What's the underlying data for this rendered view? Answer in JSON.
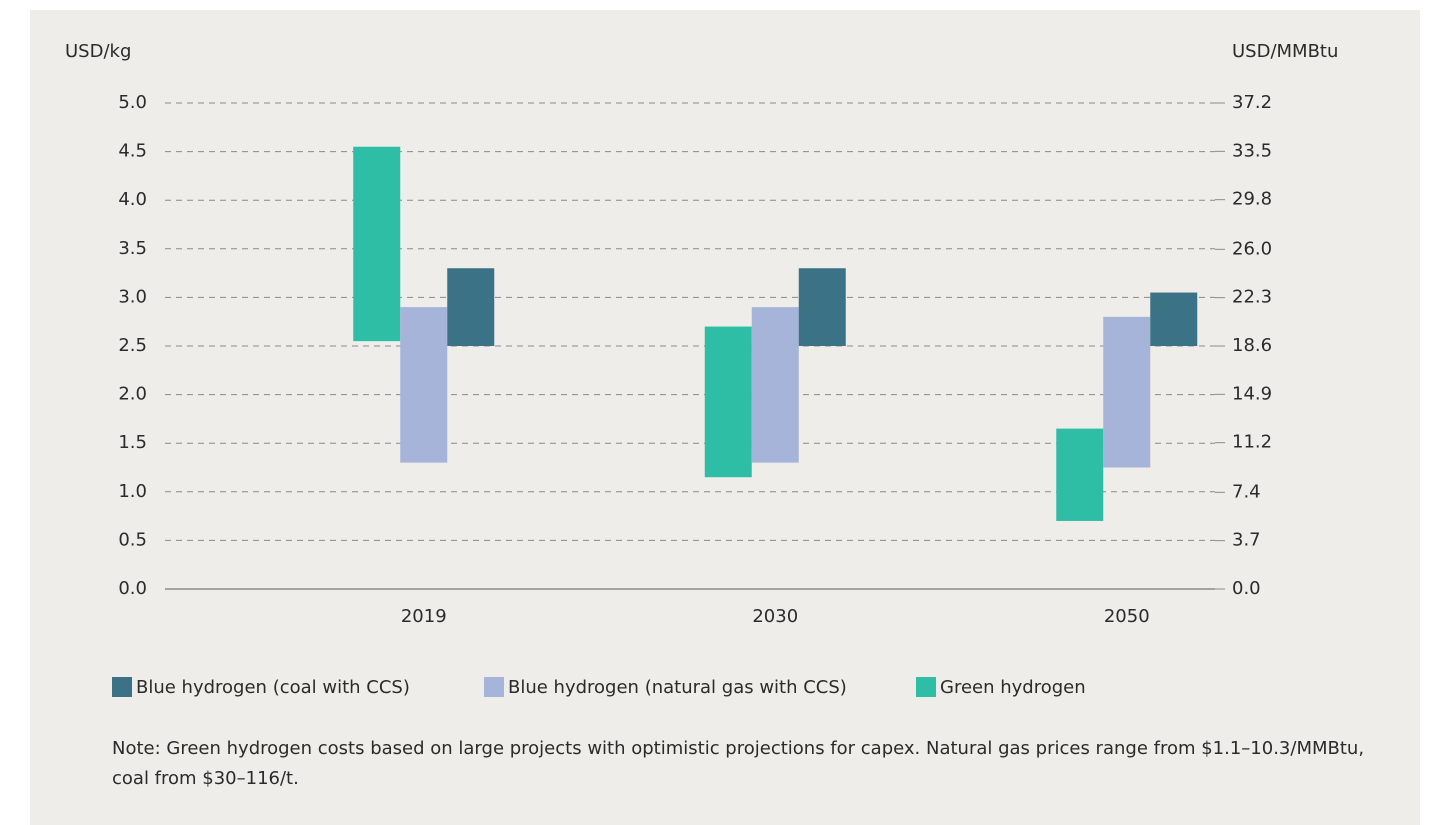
{
  "chart_data": {
    "type": "range_bar",
    "y_label": "USD/kg",
    "y2_label": "USD/MMBtu",
    "categories": [
      "2019",
      "2030",
      "2050"
    ],
    "series": [
      {
        "name": "Green hydrogen",
        "color": "#2ebda5",
        "values": [
          [
            2.55,
            4.55
          ],
          [
            1.15,
            2.7
          ],
          [
            0.7,
            1.65
          ]
        ]
      },
      {
        "name": "Blue hydrogen (natural gas with CCS)",
        "color": "#a5b4d8",
        "values": [
          [
            1.3,
            2.9
          ],
          [
            1.3,
            2.9
          ],
          [
            1.25,
            2.8
          ]
        ]
      },
      {
        "name": "Blue hydrogen (coal with CCS)",
        "color": "#3b7285",
        "values": [
          [
            2.5,
            3.3
          ],
          [
            2.5,
            3.3
          ],
          [
            2.5,
            3.05
          ]
        ]
      }
    ],
    "legend_order": [
      2,
      1,
      0
    ],
    "ylim": [
      0,
      5
    ],
    "yticks": [
      {
        "value": 0,
        "label": "0.0"
      },
      0.5,
      {
        "value": 1,
        "label": "1.0"
      },
      1.5,
      {
        "value": 2,
        "label": "2.0"
      },
      2.5,
      {
        "value": 3,
        "label": "3.0"
      },
      3.5,
      {
        "value": 4,
        "label": "4.0"
      },
      4.5,
      {
        "value": 5,
        "label": "5.0"
      }
    ],
    "y2lim": [
      0,
      37.2
    ],
    "y2ticks": [
      {
        "value": 0,
        "label": "0.0"
      },
      3.7,
      7.4,
      11.2,
      14.9,
      18.6,
      22.3,
      {
        "value": 26,
        "label": "26.0"
      },
      29.8,
      33.5,
      37.2
    ],
    "grid": true,
    "legend": "bottom",
    "note": "Note: Green hydrogen costs based on large projects with optimistic projections for capex. Natural gas prices range from $1.1–10.3/MMBtu, coal from $30–116/t."
  }
}
